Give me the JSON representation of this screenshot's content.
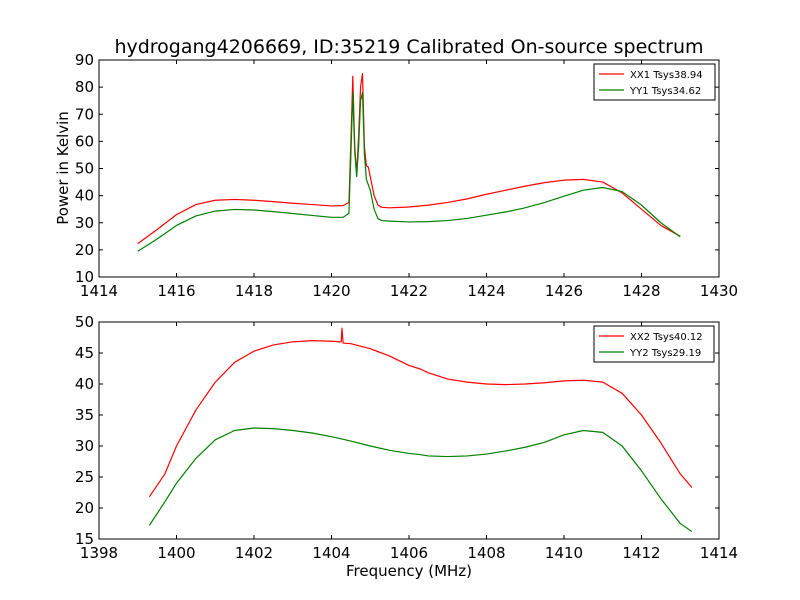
{
  "page": {
    "title": "hydrogang4206669, ID:35219 Calibrated On-source spectrum",
    "ylabel": "Power in Kelvin",
    "xlabel": "Frequency (MHz)"
  },
  "colors": {
    "red": "#ff0000",
    "green": "#008000"
  },
  "chart_data": [
    {
      "type": "line",
      "title": "hydrogang4206669, ID:35219 Calibrated On-source spectrum",
      "xlabel": "",
      "ylabel": "Power in Kelvin",
      "xlim": [
        1414,
        1430
      ],
      "ylim": [
        10,
        90
      ],
      "xticks": [
        "1414",
        "1416",
        "1418",
        "1420",
        "1422",
        "1424",
        "1426",
        "1428",
        "1430"
      ],
      "yticks": [
        "10",
        "20",
        "30",
        "40",
        "50",
        "60",
        "70",
        "80",
        "90"
      ],
      "grid": false,
      "legend_position": "top-right",
      "series": [
        {
          "name": "XX1 Tsys38.94",
          "color": "#ff0000",
          "x": [
            1415.0,
            1415.5,
            1416.0,
            1416.5,
            1417.0,
            1417.5,
            1418.0,
            1418.5,
            1419.0,
            1419.5,
            1420.0,
            1420.3,
            1420.45,
            1420.5,
            1420.55,
            1420.6,
            1420.65,
            1420.7,
            1420.75,
            1420.8,
            1420.85,
            1420.9,
            1420.95,
            1421.0,
            1421.1,
            1421.2,
            1421.3,
            1421.5,
            1422.0,
            1422.5,
            1423.0,
            1423.5,
            1424.0,
            1424.5,
            1425.0,
            1425.5,
            1426.0,
            1426.5,
            1427.0,
            1427.5,
            1428.0,
            1428.5,
            1429.0
          ],
          "values": [
            22.3,
            27.5,
            33.0,
            36.7,
            38.3,
            38.6,
            38.3,
            37.8,
            37.2,
            36.7,
            36.2,
            36.3,
            37.5,
            60.0,
            84.0,
            58.0,
            48.0,
            62.0,
            80.0,
            85.0,
            58.0,
            51.0,
            50.5,
            47.0,
            40.0,
            36.5,
            35.7,
            35.5,
            35.8,
            36.5,
            37.5,
            38.8,
            40.5,
            42.0,
            43.5,
            44.8,
            45.7,
            46.0,
            45.0,
            41.0,
            35.0,
            29.0,
            25.0
          ]
        },
        {
          "name": "YY1 Tsys34.62",
          "color": "#008000",
          "x": [
            1415.0,
            1415.5,
            1416.0,
            1416.5,
            1417.0,
            1417.5,
            1418.0,
            1418.5,
            1419.0,
            1419.5,
            1420.0,
            1420.3,
            1420.45,
            1420.5,
            1420.55,
            1420.6,
            1420.65,
            1420.7,
            1420.75,
            1420.8,
            1420.85,
            1420.9,
            1420.95,
            1421.0,
            1421.1,
            1421.2,
            1421.3,
            1421.5,
            1422.0,
            1422.5,
            1423.0,
            1423.5,
            1424.0,
            1424.5,
            1425.0,
            1425.5,
            1426.0,
            1426.5,
            1427.0,
            1427.5,
            1428.0,
            1428.5,
            1429.0
          ],
          "values": [
            19.5,
            24.0,
            29.0,
            32.5,
            34.3,
            34.9,
            34.7,
            34.1,
            33.4,
            32.7,
            32.0,
            32.0,
            33.5,
            55.0,
            78.0,
            56.0,
            47.0,
            58.0,
            75.0,
            78.0,
            55.0,
            46.0,
            44.0,
            42.0,
            35.0,
            31.5,
            30.8,
            30.6,
            30.3,
            30.4,
            30.8,
            31.6,
            32.8,
            34.0,
            35.5,
            37.5,
            39.8,
            42.0,
            43.0,
            41.5,
            36.5,
            30.0,
            24.8
          ]
        }
      ]
    },
    {
      "type": "line",
      "title": "",
      "xlabel": "Frequency (MHz)",
      "ylabel": "",
      "xlim": [
        1398,
        1414
      ],
      "ylim": [
        15,
        50
      ],
      "xticks": [
        "1398",
        "1400",
        "1402",
        "1404",
        "1406",
        "1408",
        "1410",
        "1412",
        "1414"
      ],
      "yticks": [
        "15",
        "20",
        "25",
        "30",
        "35",
        "40",
        "45",
        "50"
      ],
      "grid": false,
      "legend_position": "top-right",
      "series": [
        {
          "name": "XX2 Tsys40.12",
          "color": "#ff0000",
          "x": [
            1399.3,
            1399.7,
            1400.0,
            1400.5,
            1401.0,
            1401.5,
            1402.0,
            1402.5,
            1403.0,
            1403.5,
            1404.0,
            1404.25,
            1404.27,
            1404.3,
            1404.5,
            1405.0,
            1405.5,
            1406.0,
            1406.3,
            1406.5,
            1407.0,
            1407.5,
            1408.0,
            1408.5,
            1409.0,
            1409.5,
            1410.0,
            1410.5,
            1411.0,
            1411.5,
            1412.0,
            1412.5,
            1413.0,
            1413.3
          ],
          "values": [
            21.8,
            25.5,
            30.0,
            35.8,
            40.3,
            43.5,
            45.3,
            46.3,
            46.8,
            47.0,
            46.9,
            46.8,
            49.0,
            46.6,
            46.5,
            45.7,
            44.5,
            43.0,
            42.4,
            41.8,
            40.8,
            40.3,
            40.0,
            39.9,
            40.0,
            40.2,
            40.5,
            40.6,
            40.3,
            38.5,
            35.0,
            30.5,
            25.5,
            23.3
          ]
        },
        {
          "name": "YY2 Tsys29.19",
          "color": "#008000",
          "x": [
            1399.3,
            1399.7,
            1400.0,
            1400.5,
            1401.0,
            1401.5,
            1402.0,
            1402.5,
            1403.0,
            1403.5,
            1404.0,
            1404.5,
            1405.0,
            1405.5,
            1406.0,
            1406.3,
            1406.5,
            1407.0,
            1407.5,
            1408.0,
            1408.5,
            1409.0,
            1409.5,
            1410.0,
            1410.5,
            1411.0,
            1411.5,
            1412.0,
            1412.5,
            1413.0,
            1413.3
          ],
          "values": [
            17.2,
            21.0,
            24.0,
            28.0,
            31.0,
            32.5,
            32.9,
            32.8,
            32.5,
            32.1,
            31.5,
            30.8,
            30.0,
            29.3,
            28.8,
            28.6,
            28.4,
            28.3,
            28.4,
            28.7,
            29.2,
            29.8,
            30.6,
            31.8,
            32.5,
            32.2,
            30.0,
            26.0,
            21.5,
            17.5,
            16.2
          ]
        }
      ]
    }
  ]
}
